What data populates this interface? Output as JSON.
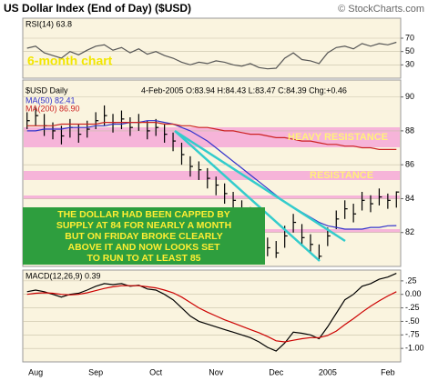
{
  "header": {
    "title": "US Dollar Index (End of Day) ($USD)",
    "source": "© StockCharts.com"
  },
  "chart_data": [
    {
      "type": "line",
      "title": "RSI(14) 63.8",
      "annotations": [
        "6-month chart"
      ],
      "ylim": [
        10,
        100
      ],
      "yticks": [
        30,
        50,
        70
      ],
      "grid": true,
      "series": [
        {
          "color": "#555555",
          "values": [
            55,
            58,
            48,
            44,
            40,
            50,
            45,
            52,
            58,
            60,
            52,
            56,
            48,
            54,
            46,
            50,
            44,
            40,
            34,
            30,
            34,
            32,
            36,
            34,
            30,
            28,
            32,
            26,
            24,
            25,
            40,
            48,
            38,
            36,
            32,
            48,
            56,
            58,
            54,
            62,
            58,
            62,
            60,
            63.8
          ]
        }
      ]
    },
    {
      "type": "ohlc",
      "title": "$USD Daily",
      "quote": "4-Feb-2005 O:83.94 H:84.43 L:83.47 C:84.39 Chg:+0.46",
      "annotations": [
        "HEAVY RESISTANCE",
        "RESISTANCE"
      ],
      "callout": [
        "THE DOLLAR HAD BEEN CAPPED BY",
        "SUPPLY AT 84 FOR NEARLY A MONTH",
        "BUT ON FRIDAY BROKE CLEARLY",
        "ABOVE IT AND NOW LOOKS SET",
        "TO RUN TO AT LEAST 85"
      ],
      "categories": [
        null,
        "Aug",
        null,
        null,
        null,
        null,
        null,
        null,
        "Sep",
        null,
        null,
        null,
        null,
        null,
        null,
        "Oct",
        null,
        null,
        null,
        null,
        null,
        null,
        "Nov",
        null,
        null,
        null,
        null,
        null,
        null,
        "Dec",
        null,
        null,
        null,
        null,
        null,
        "2005",
        null,
        null,
        null,
        null,
        null,
        null,
        "Feb",
        null
      ],
      "high": [
        89.1,
        89.4,
        89.0,
        88.5,
        88.3,
        88.7,
        88.4,
        88.6,
        89.1,
        89.5,
        89.0,
        89.2,
        88.8,
        89.0,
        88.6,
        88.7,
        88.4,
        87.9,
        87.3,
        86.5,
        86.2,
        85.8,
        85.3,
        84.9,
        84.4,
        83.9,
        83.5,
        82.6,
        81.7,
        81.5,
        82.4,
        83.1,
        82.5,
        81.9,
        81.3,
        82.3,
        83.3,
        83.9,
        83.7,
        84.4,
        84.2,
        84.6,
        84.3,
        84.43
      ],
      "low": [
        88.1,
        88.3,
        87.7,
        87.5,
        87.2,
        87.6,
        87.3,
        87.6,
        88.1,
        88.3,
        87.9,
        88.1,
        87.7,
        88.0,
        87.5,
        87.7,
        87.3,
        86.8,
        86.0,
        85.3,
        85.1,
        84.6,
        84.2,
        83.7,
        83.3,
        82.7,
        82.3,
        81.3,
        80.6,
        80.5,
        81.1,
        82.0,
        81.2,
        80.8,
        80.4,
        81.2,
        82.2,
        82.8,
        82.6,
        83.3,
        83.2,
        83.6,
        83.4,
        83.47
      ],
      "close": [
        88.6,
        88.9,
        88.3,
        88.0,
        87.7,
        88.2,
        87.8,
        88.1,
        88.6,
        88.9,
        88.4,
        88.7,
        88.2,
        88.5,
        88.0,
        88.2,
        87.8,
        87.4,
        86.6,
        85.9,
        85.7,
        85.2,
        84.8,
        84.3,
        83.9,
        83.3,
        82.9,
        81.9,
        81.1,
        80.8,
        81.8,
        82.6,
        81.7,
        81.3,
        80.6,
        81.8,
        82.8,
        83.4,
        83.1,
        83.9,
        83.7,
        84.1,
        83.9,
        84.39
      ],
      "color": "#000000",
      "series": [
        {
          "name": "MA(50) 82.41",
          "color": "#3333cc",
          "values": [
            88.0,
            88.0,
            88.1,
            88.1,
            88.1,
            88.2,
            88.2,
            88.2,
            88.3,
            88.3,
            88.4,
            88.4,
            88.5,
            88.5,
            88.6,
            88.6,
            88.5,
            88.4,
            88.2,
            88.0,
            87.7,
            87.4,
            87.0,
            86.6,
            86.2,
            85.8,
            85.4,
            85.0,
            84.6,
            84.2,
            83.8,
            83.5,
            83.2,
            82.9,
            82.6,
            82.4,
            82.3,
            82.2,
            82.2,
            82.2,
            82.3,
            82.3,
            82.4,
            82.41
          ]
        },
        {
          "name": "MA(200) 86.90",
          "color": "#cc2222",
          "values": [
            88.3,
            88.3,
            88.3,
            88.3,
            88.4,
            88.4,
            88.4,
            88.4,
            88.4,
            88.5,
            88.5,
            88.5,
            88.5,
            88.5,
            88.5,
            88.5,
            88.4,
            88.4,
            88.3,
            88.3,
            88.2,
            88.2,
            88.1,
            88.0,
            88.0,
            87.9,
            87.8,
            87.8,
            87.7,
            87.6,
            87.6,
            87.5,
            87.4,
            87.4,
            87.3,
            87.2,
            87.2,
            87.1,
            87.1,
            87.0,
            87.0,
            86.9,
            86.9,
            86.9
          ]
        }
      ],
      "ylim": [
        80,
        91
      ],
      "yticks": [
        82,
        84,
        86,
        88,
        90
      ],
      "grid": true
    },
    {
      "type": "line",
      "title": "MACD(12,26,9) 0.39",
      "ylim": [
        -1.25,
        0.45
      ],
      "yticks": [
        {
          "value": 0.25,
          "label": ".25"
        },
        {
          "value": 0,
          "label": "0.00"
        },
        {
          "value": -0.25,
          "label": "-.25"
        },
        {
          "value": -0.5,
          "label": "-.50"
        },
        {
          "value": -0.75,
          "label": "-.75"
        },
        {
          "value": -1,
          "label": "-1.00"
        }
      ],
      "grid": true,
      "series": [
        {
          "color": "#000000",
          "values": [
            0.05,
            0.08,
            0.05,
            0.0,
            -0.05,
            0.0,
            0.02,
            0.08,
            0.15,
            0.2,
            0.18,
            0.2,
            0.15,
            0.17,
            0.1,
            0.08,
            0.0,
            -0.1,
            -0.25,
            -0.4,
            -0.5,
            -0.55,
            -0.6,
            -0.65,
            -0.7,
            -0.75,
            -0.8,
            -0.88,
            -0.98,
            -1.05,
            -0.9,
            -0.7,
            -0.72,
            -0.75,
            -0.82,
            -0.6,
            -0.35,
            -0.1,
            0.0,
            0.15,
            0.2,
            0.28,
            0.32,
            0.39
          ]
        },
        {
          "color": "#cc0000",
          "values": [
            0.0,
            0.02,
            0.03,
            0.02,
            0.0,
            -0.01,
            0.0,
            0.03,
            0.07,
            0.11,
            0.14,
            0.16,
            0.16,
            0.16,
            0.14,
            0.12,
            0.08,
            0.03,
            -0.05,
            -0.15,
            -0.25,
            -0.33,
            -0.4,
            -0.47,
            -0.53,
            -0.59,
            -0.65,
            -0.71,
            -0.78,
            -0.86,
            -0.88,
            -0.85,
            -0.82,
            -0.8,
            -0.8,
            -0.76,
            -0.68,
            -0.56,
            -0.45,
            -0.33,
            -0.22,
            -0.12,
            -0.03,
            0.05
          ]
        }
      ]
    }
  ]
}
